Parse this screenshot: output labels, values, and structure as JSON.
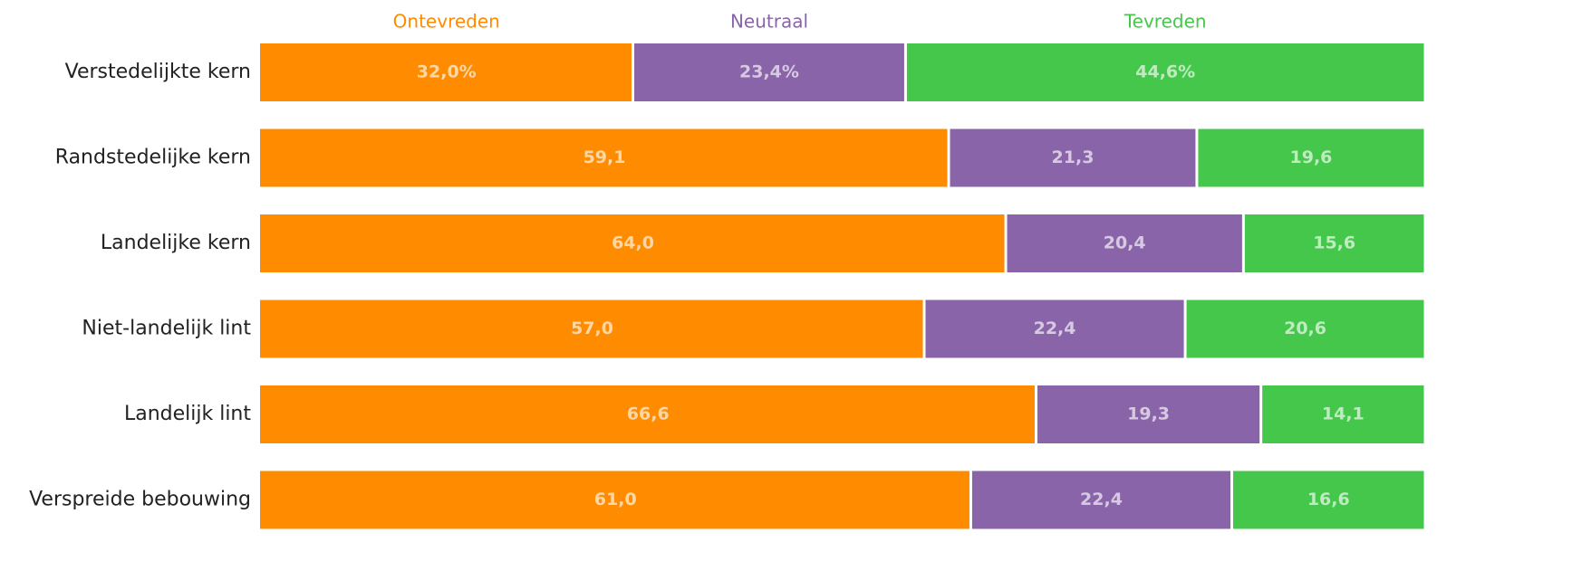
{
  "chart_data": {
    "type": "stacked_barh",
    "categories": [
      "Verstedelijkte kern",
      "Randstedelijke kern",
      "Landelijke kern",
      "Niet-landelijk lint",
      "Landelijk lint",
      "Verspreide bebouwing"
    ],
    "series": [
      {
        "name": "Ontevreden",
        "color": "#ff8c00",
        "values": [
          32.0,
          59.1,
          64.0,
          57.0,
          66.6,
          61.0
        ],
        "value_labels": [
          "32,0%",
          "59,1",
          "64,0",
          "57,0",
          "66,6",
          "61,0"
        ]
      },
      {
        "name": "Neutraal",
        "color": "#8a64a9",
        "values": [
          23.4,
          21.3,
          20.4,
          22.4,
          19.3,
          22.4
        ],
        "value_labels": [
          "23,4%",
          "21,3",
          "20,4",
          "22,4",
          "19,3",
          "22,4"
        ]
      },
      {
        "name": "Tevreden",
        "color": "#45c74b",
        "values": [
          44.6,
          19.6,
          15.6,
          20.6,
          14.1,
          16.6
        ],
        "value_labels": [
          "44,6%",
          "19,6",
          "15,6",
          "20,6",
          "14,1",
          "16,6"
        ]
      }
    ],
    "xlim": [
      0,
      100
    ]
  }
}
